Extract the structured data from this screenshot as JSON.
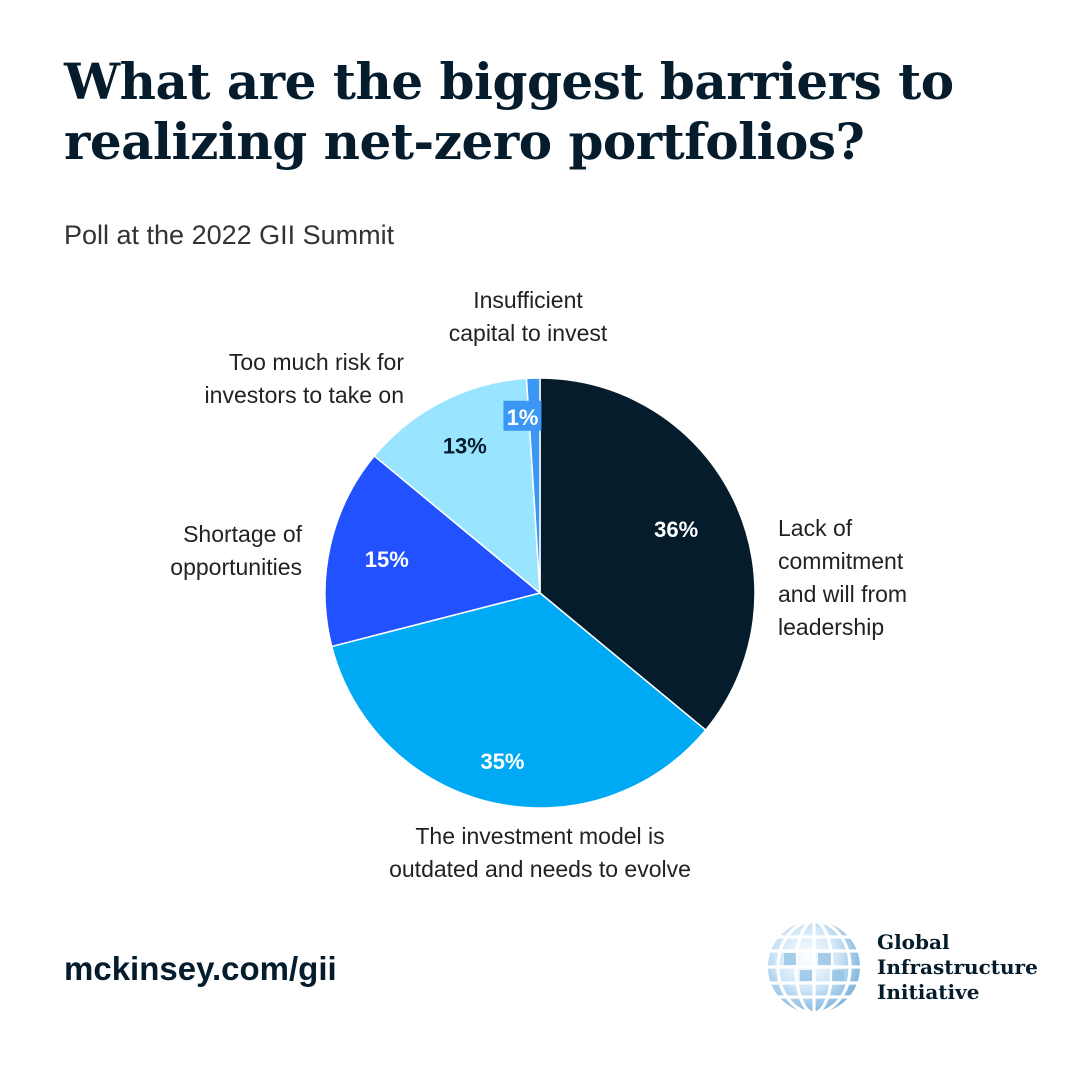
{
  "header": {
    "title_lines": [
      "What are the biggest barriers to",
      "realizing net-zero portfolios?"
    ],
    "subtitle": "Poll at the 2022 GII Summit"
  },
  "chart_data": {
    "type": "pie",
    "start": "12 o'clock",
    "direction": "clockwise",
    "slices": [
      {
        "label_lines": [
          "Lack of",
          "commitment",
          "and will from",
          "leadership"
        ],
        "value": 36,
        "value_label": "36%",
        "color": "#051c2c",
        "value_label_color": "#ffffff"
      },
      {
        "label_lines": [
          "The investment model is",
          "outdated and needs to evolve"
        ],
        "value": 35,
        "value_label": "35%",
        "color": "#00a9f4",
        "value_label_color": "#ffffff"
      },
      {
        "label_lines": [
          "Shortage of",
          "opportunities"
        ],
        "value": 15,
        "value_label": "15%",
        "color": "#2251ff",
        "value_label_color": "#ffffff"
      },
      {
        "label_lines": [
          "Too much risk for",
          "investors to take on"
        ],
        "value": 13,
        "value_label": "13%",
        "color": "#99e4ff",
        "value_label_color": "#051c2c"
      },
      {
        "label_lines": [
          "Insufficient",
          "capital to invest"
        ],
        "value": 1,
        "value_label": "1%",
        "color": "#3c96f4",
        "value_label_color": "#ffffff"
      }
    ]
  },
  "footer": {
    "url": "mckinsey.com/gii",
    "logo_lines": [
      "Global",
      "Infrastructure",
      "Initiative"
    ]
  }
}
